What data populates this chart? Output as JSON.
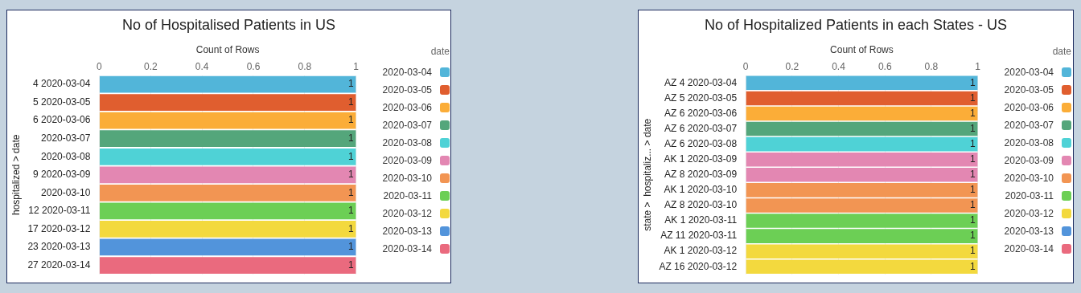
{
  "chart_data": [
    {
      "type": "bar",
      "title": "No of Hospitalised Patients in US",
      "xlabel": "Count of Rows",
      "ylabel": "hospitalized > date",
      "legend_title": "date",
      "orientation": "horizontal",
      "stacked": true,
      "data_labels": true,
      "grid": "x",
      "legend": "right",
      "xlim": [
        0,
        1
      ],
      "xticks": [
        0,
        0.2,
        0.4,
        0.6,
        0.8,
        1
      ],
      "categories": [
        "4 2020-03-04",
        "5 2020-03-05",
        "6 2020-03-06",
        "2020-03-07",
        "2020-03-08",
        "9 2020-03-09",
        "2020-03-10",
        "12 2020-03-11",
        "17 2020-03-12",
        "23 2020-03-13",
        "27 2020-03-14"
      ],
      "series": [
        {
          "name": "2020-03-04",
          "color": "#52b5d9",
          "values": [
            1,
            null,
            null,
            null,
            null,
            null,
            null,
            null,
            null,
            null,
            null
          ]
        },
        {
          "name": "2020-03-05",
          "color": "#e05e2f",
          "values": [
            null,
            1,
            null,
            null,
            null,
            null,
            null,
            null,
            null,
            null,
            null
          ]
        },
        {
          "name": "2020-03-06",
          "color": "#fbad38",
          "values": [
            null,
            null,
            1,
            null,
            null,
            null,
            null,
            null,
            null,
            null,
            null
          ]
        },
        {
          "name": "2020-03-07",
          "color": "#54a67b",
          "values": [
            null,
            null,
            null,
            1,
            null,
            null,
            null,
            null,
            null,
            null,
            null
          ]
        },
        {
          "name": "2020-03-08",
          "color": "#4fd2d6",
          "values": [
            null,
            null,
            null,
            null,
            1,
            null,
            null,
            null,
            null,
            null,
            null
          ]
        },
        {
          "name": "2020-03-09",
          "color": "#e387b2",
          "values": [
            null,
            null,
            null,
            null,
            null,
            1,
            null,
            null,
            null,
            null,
            null
          ]
        },
        {
          "name": "2020-03-10",
          "color": "#f29553",
          "values": [
            null,
            null,
            null,
            null,
            null,
            null,
            1,
            null,
            null,
            null,
            null
          ]
        },
        {
          "name": "2020-03-11",
          "color": "#6ccf55",
          "values": [
            null,
            null,
            null,
            null,
            null,
            null,
            null,
            1,
            null,
            null,
            null
          ]
        },
        {
          "name": "2020-03-12",
          "color": "#f3d93e",
          "values": [
            null,
            null,
            null,
            null,
            null,
            null,
            null,
            null,
            1,
            null,
            null
          ]
        },
        {
          "name": "2020-03-13",
          "color": "#5294db",
          "values": [
            null,
            null,
            null,
            null,
            null,
            null,
            null,
            null,
            null,
            1,
            null
          ]
        },
        {
          "name": "2020-03-14",
          "color": "#ea6a7e",
          "values": [
            null,
            null,
            null,
            null,
            null,
            null,
            null,
            null,
            null,
            null,
            1
          ]
        }
      ]
    },
    {
      "type": "bar",
      "title": "No of Hospitalized Patients in each States - US",
      "xlabel": "Count of Rows",
      "ylabel": "state >  hospitaliz... > date",
      "legend_title": "date",
      "orientation": "horizontal",
      "stacked": true,
      "data_labels": true,
      "grid": "x",
      "legend": "right",
      "xlim": [
        0,
        1
      ],
      "xticks": [
        0,
        0.2,
        0.4,
        0.6,
        0.8,
        1
      ],
      "categories": [
        "AZ 4 2020-03-04",
        "AZ 5 2020-03-05",
        "AZ 6 2020-03-06",
        "AZ 6 2020-03-07",
        "AZ 6 2020-03-08",
        "AK 1 2020-03-09",
        "AZ 8 2020-03-09",
        "AK 1 2020-03-10",
        "AZ 8 2020-03-10",
        "AK 1 2020-03-11",
        "AZ 11 2020-03-11",
        "AK 1 2020-03-12",
        "AZ 16 2020-03-12"
      ],
      "series": [
        {
          "name": "2020-03-04",
          "color": "#52b5d9",
          "values": [
            1,
            null,
            null,
            null,
            null,
            null,
            null,
            null,
            null,
            null,
            null,
            null,
            null
          ]
        },
        {
          "name": "2020-03-05",
          "color": "#e05e2f",
          "values": [
            null,
            1,
            null,
            null,
            null,
            null,
            null,
            null,
            null,
            null,
            null,
            null,
            null
          ]
        },
        {
          "name": "2020-03-06",
          "color": "#fbad38",
          "values": [
            null,
            null,
            1,
            null,
            null,
            null,
            null,
            null,
            null,
            null,
            null,
            null,
            null
          ]
        },
        {
          "name": "2020-03-07",
          "color": "#54a67b",
          "values": [
            null,
            null,
            null,
            1,
            null,
            null,
            null,
            null,
            null,
            null,
            null,
            null,
            null
          ]
        },
        {
          "name": "2020-03-08",
          "color": "#4fd2d6",
          "values": [
            null,
            null,
            null,
            null,
            1,
            null,
            null,
            null,
            null,
            null,
            null,
            null,
            null
          ]
        },
        {
          "name": "2020-03-09",
          "color": "#e387b2",
          "values": [
            null,
            null,
            null,
            null,
            null,
            1,
            1,
            null,
            null,
            null,
            null,
            null,
            null
          ]
        },
        {
          "name": "2020-03-10",
          "color": "#f29553",
          "values": [
            null,
            null,
            null,
            null,
            null,
            null,
            null,
            1,
            1,
            null,
            null,
            null,
            null
          ]
        },
        {
          "name": "2020-03-11",
          "color": "#6ccf55",
          "values": [
            null,
            null,
            null,
            null,
            null,
            null,
            null,
            null,
            null,
            1,
            1,
            null,
            null
          ]
        },
        {
          "name": "2020-03-12",
          "color": "#f3d93e",
          "values": [
            null,
            null,
            null,
            null,
            null,
            null,
            null,
            null,
            null,
            null,
            null,
            1,
            1
          ]
        },
        {
          "name": "2020-03-13",
          "color": "#5294db",
          "values": [
            null,
            null,
            null,
            null,
            null,
            null,
            null,
            null,
            null,
            null,
            null,
            null,
            null
          ]
        },
        {
          "name": "2020-03-14",
          "color": "#ea6a7e",
          "values": [
            null,
            null,
            null,
            null,
            null,
            null,
            null,
            null,
            null,
            null,
            null,
            null,
            null
          ]
        }
      ]
    }
  ]
}
